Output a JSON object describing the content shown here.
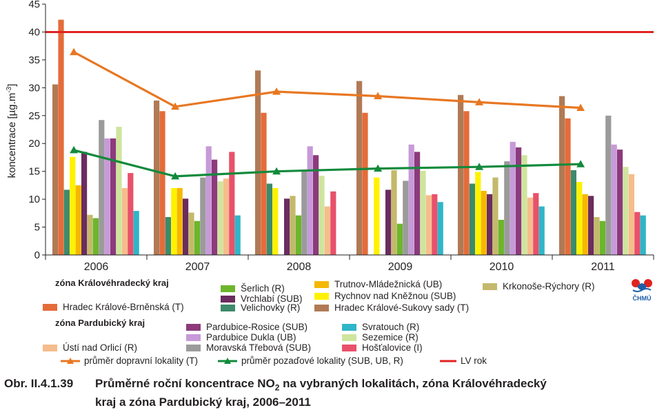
{
  "chart_data": {
    "type": "bar",
    "categories": [
      "2006",
      "2007",
      "2008",
      "2009",
      "2010",
      "2011"
    ],
    "ylabel": "koncentrace [µg.m-3]",
    "ylabel_main": "koncentrace [µg.m",
    "ylabel_sup": "-3",
    "ylabel_end": "]",
    "ylim": [
      0,
      45
    ],
    "yticks": [
      "0",
      "5",
      "10",
      "15",
      "20",
      "25",
      "30",
      "35",
      "40",
      "45"
    ],
    "grid": false,
    "series": [
      {
        "name": "Hradec Králové-Sukovy sady (T)",
        "color": "#b07a56",
        "values": [
          30.6,
          27.7,
          33.1,
          31.2,
          28.7,
          28.5
        ]
      },
      {
        "name": "Hradec Králové-Brněnská (T)",
        "color": "#e46c3a",
        "values": [
          42.2,
          25.8,
          25.5,
          25.5,
          25.8,
          24.5
        ]
      },
      {
        "name": "Velichovky (R)",
        "color": "#3d8a6c",
        "values": [
          11.7,
          6.8,
          12.8,
          null,
          12.8,
          15.2
        ]
      },
      {
        "name": "Rychnov nad Kněžnou (SUB)",
        "color": "#fff200",
        "values": [
          17.6,
          12.0,
          12.0,
          13.9,
          14.9,
          13.1
        ]
      },
      {
        "name": "Trutnov-Mládežnická (UB)",
        "color": "#f5b800",
        "values": [
          12.5,
          12.0,
          null,
          null,
          11.5,
          10.9
        ]
      },
      {
        "name": "Vrchlabí (SUB)",
        "color": "#6b2c5f",
        "values": [
          18.5,
          10.1,
          10.1,
          11.7,
          10.9,
          10.6
        ]
      },
      {
        "name": "Krkonoše-Rýchory (R)",
        "color": "#c4b96b",
        "values": [
          7.2,
          7.6,
          10.6,
          15.2,
          13.9,
          6.8
        ]
      },
      {
        "name": "Šerlich (R)",
        "color": "#6cb62c",
        "values": [
          6.6,
          6.1,
          7.1,
          5.6,
          6.3,
          6.1
        ]
      },
      {
        "name": "Moravská Třebová (SUB)",
        "color": "#9b9b9b",
        "values": [
          24.2,
          13.9,
          15.1,
          13.3,
          16.8,
          25.0
        ]
      },
      {
        "name": "Pardubice Dukla (UB)",
        "color": "#c79ad8",
        "values": [
          20.9,
          19.5,
          19.5,
          19.8,
          20.3,
          19.8
        ]
      },
      {
        "name": "Pardubice-Rosice (SUB)",
        "color": "#8c3a7c",
        "values": [
          20.9,
          17.1,
          17.9,
          18.5,
          19.3,
          18.9
        ]
      },
      {
        "name": "Sezemice (R)",
        "color": "#cfe59d",
        "values": [
          23.0,
          13.2,
          14.2,
          15.1,
          17.9,
          15.8
        ]
      },
      {
        "name": "Ústí nad Orlicí (R)",
        "color": "#f6bd8c",
        "values": [
          12.0,
          13.7,
          8.7,
          10.7,
          10.3,
          14.5
        ]
      },
      {
        "name": "Hošťalovice (I)",
        "color": "#e8516a",
        "values": [
          14.7,
          18.5,
          11.4,
          10.9,
          11.1,
          7.7
        ]
      },
      {
        "name": "Svratouch (R)",
        "color": "#2fb6c8",
        "values": [
          7.9,
          7.1,
          null,
          9.5,
          8.7,
          7.1
        ]
      }
    ],
    "lines": [
      {
        "name": "průměr dopravní lokality (T)",
        "color": "#e87722",
        "marker": "triangle",
        "values": [
          36.4,
          26.6,
          29.3,
          28.5,
          27.4,
          26.4
        ]
      },
      {
        "name": "průměr pozaďové lokality (SUB, UB, R)",
        "color": "#128a3c",
        "marker": "triangle",
        "values": [
          18.8,
          14.1,
          15.0,
          15.5,
          15.8,
          16.3
        ]
      },
      {
        "name": "LV rok",
        "color": "#e0231f",
        "marker": "none",
        "value": 40
      }
    ]
  },
  "legend": {
    "zone1": "zóna Královéhradecký kraj",
    "zone2": "zóna Pardubický kraj"
  },
  "logo_text": "ČHMÚ",
  "caption": {
    "prefix": "Obr. II.4.1.39",
    "line1_a": "Průměrné roční koncentrace NO",
    "line1_sub": "2",
    "line1_b": " na vybraných lokalitách, zóna Královéhradecký",
    "line2": "kraj a zóna Pardubický kraj, 2006–2011"
  }
}
